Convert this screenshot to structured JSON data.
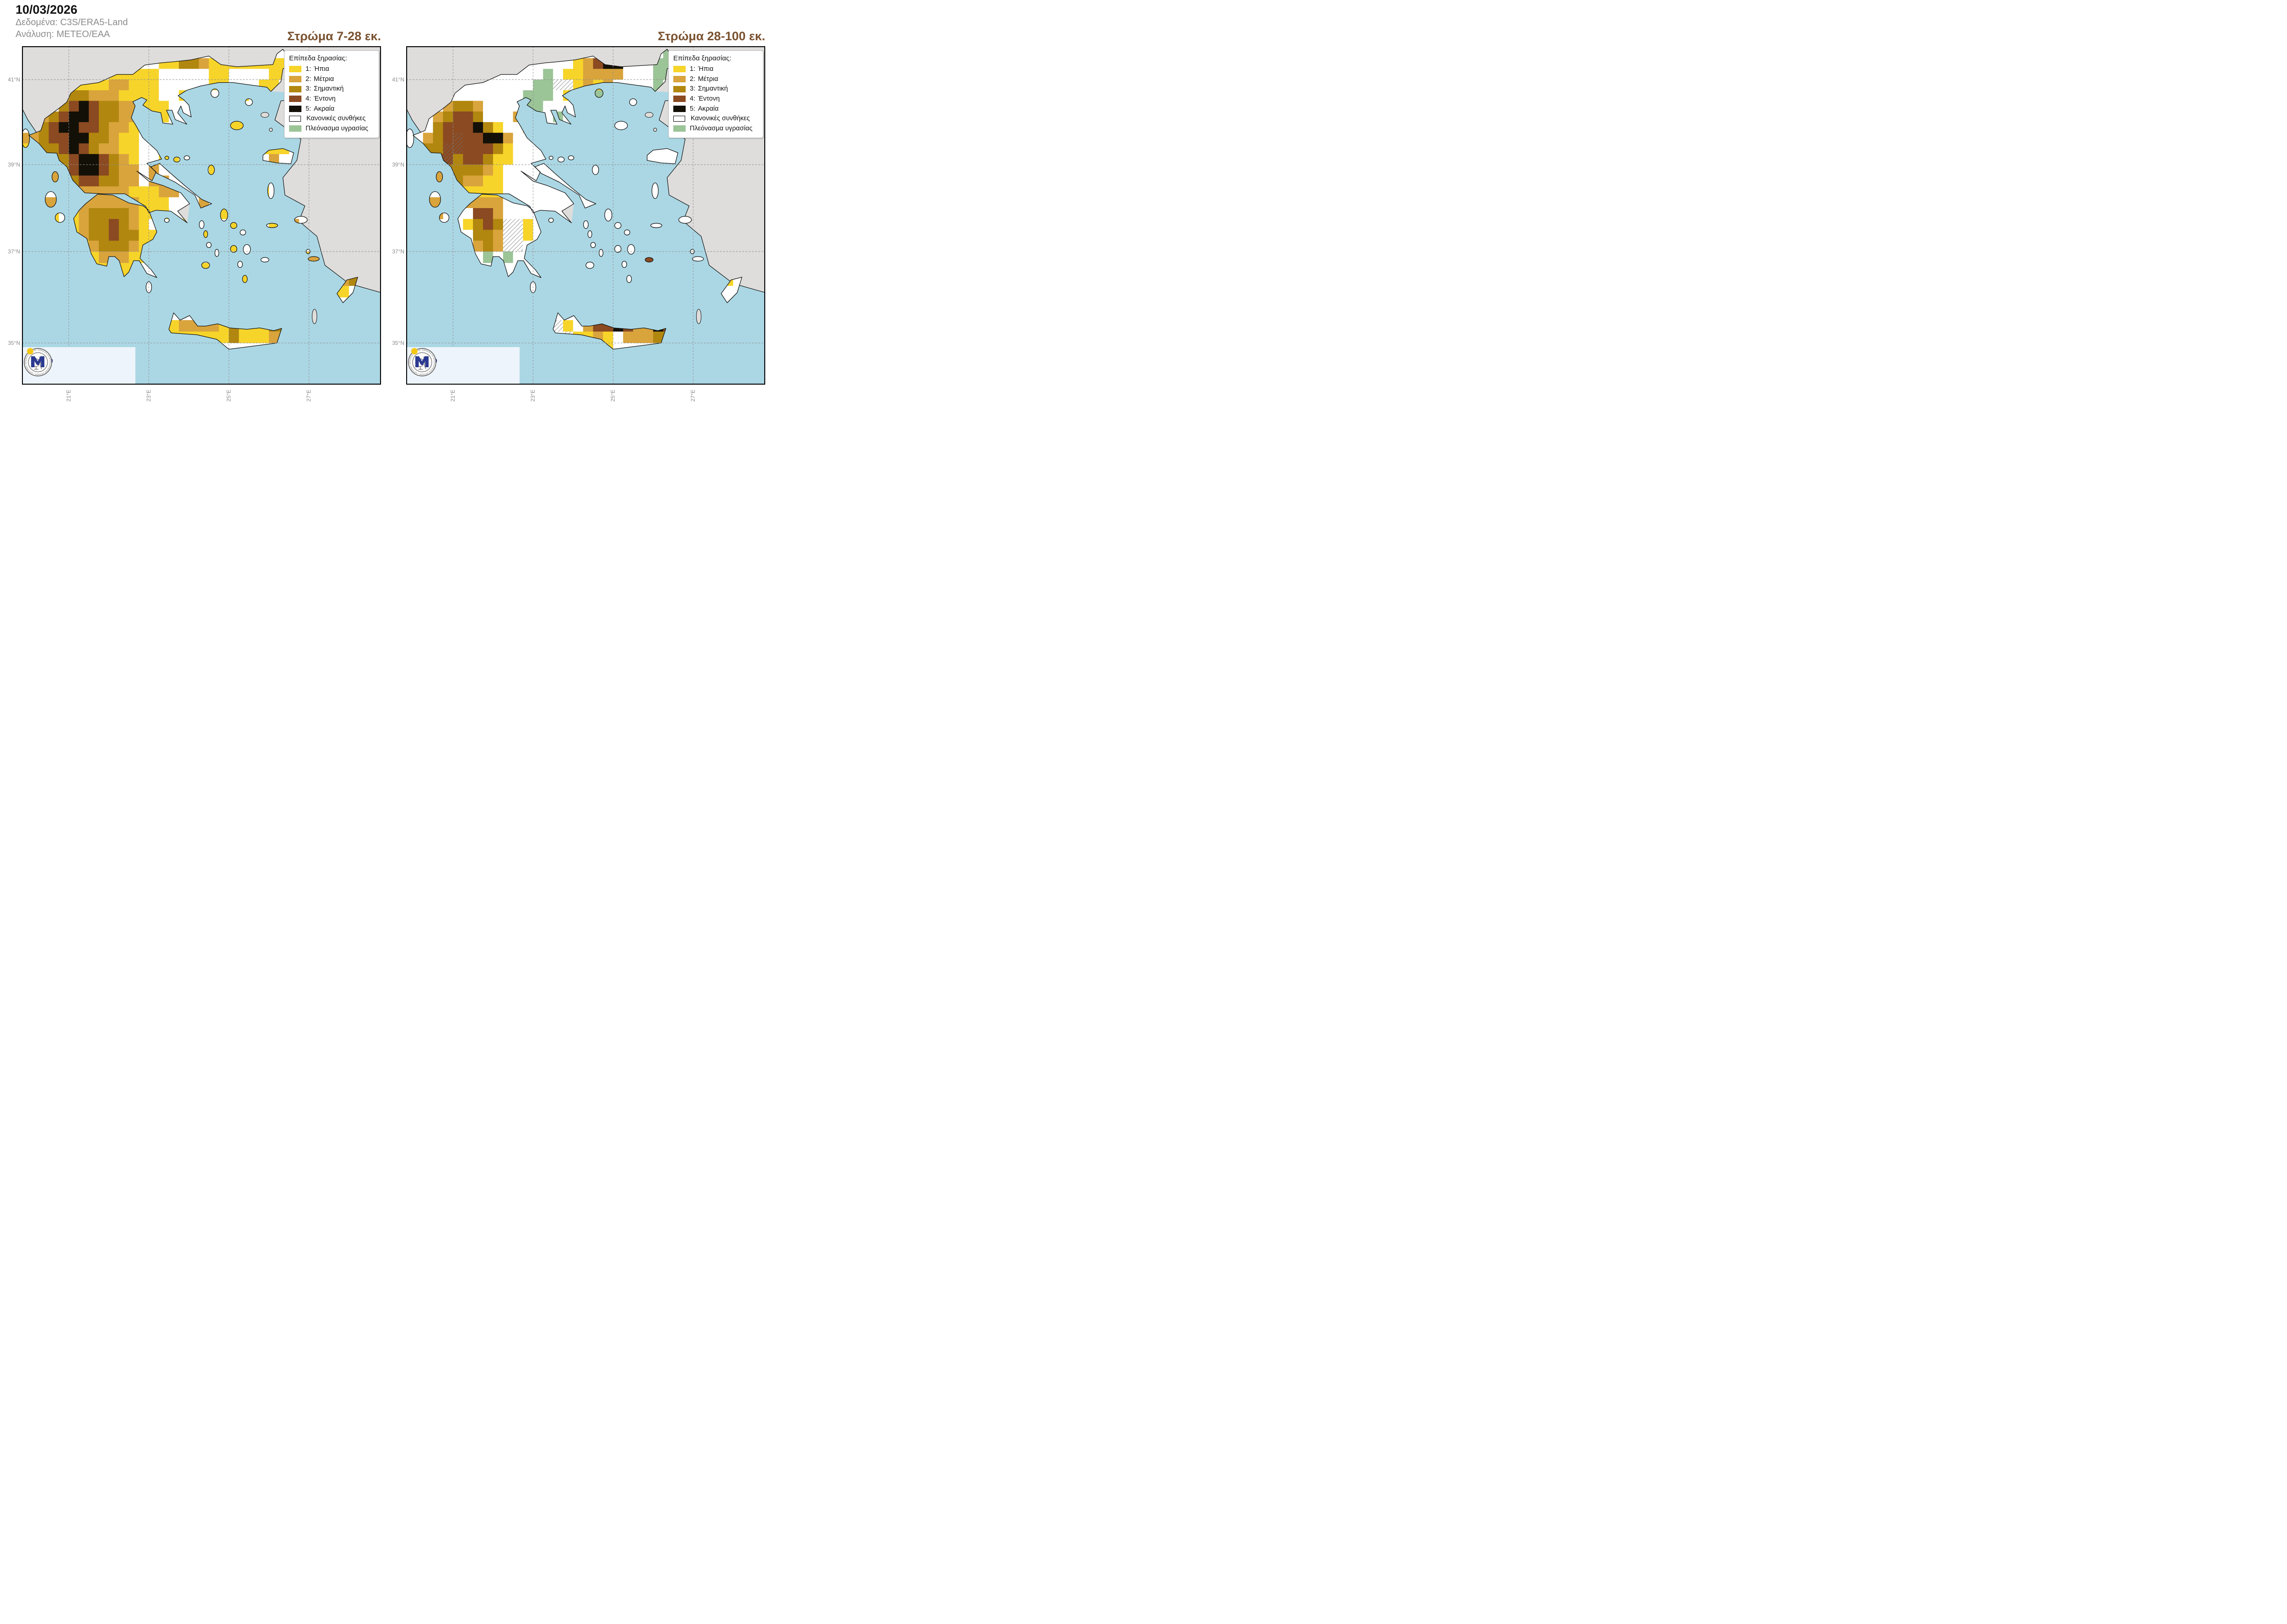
{
  "header": {
    "date": "10/03/2026",
    "data_source": "Δεδομένα: C3S/ERA5-Land",
    "analysis": "Ανάλυση: ΜΕΤΕΟ/ΕΑΑ"
  },
  "maps": [
    {
      "title": "Στρώμα 7-28 εκ.",
      "grid": [
        "....................................",
        "..............1133211111111.........",
        ".........111110000011000011.........",
        ".....1111221110000011000110.........",
        "....23322211110010000110011.........",
        "....3454332211100...................",
        ".2234554332211100....10.............",
        ".23455443221.........11.............",
        "223445533211........................",
        "123345432211............111.........",
        "..2334554321..11.........2..........",
        "...234554322.2.....1................",
        "..2223443322.22.....................",
        ".....22222211122........1...........",
        "..22..2222221110..2.................",
        "...1.1233332111.....1...............",
        "...1.123343210..1....1...1.2........",
        ".....123343311....1.................",
        "......1233321.......010.............",
        "......0122211...............12......",
        ".......111110.....1.................",
        "........0.100.........1.........23..",
        "............0..................110..",
        "....................................",
        "....................................",
        "...............122221311133.........",
        "...............111111311122.........",
        "...................000.............."
      ]
    },
    {
      "title": "Στρώμα 28-100 εκ.",
      "grid": [
        "..........................gg........",
        ".................12455000ggg........",
        ".........00000g0112222000gg.........",
        ".....00000000gghh12120000g0.........",
        "....00000000ggg0101g0g000gg.........",
        "....23320000gg000.1.................",
        "..0234430002400g0....00.............",
        ".0034445310020.......00.............",
        ".0234x4455200.......................",
        "..33xx4443100.00........000.........",
        "..3xx3443110..00.........0..........",
        "...233332100.0.....0................",
        "..0223221100.00.....................",
        ".....11111000000........0...........",
        "..22..2222000000..0.................",
        "...2.0044200000.....0...............",
        ".....01343hh10..0....0...0.0........",
        ".....00332hh10....0.................",
        "......0232hh0.......000.............",
        "......00g0g00...........4...00......",
        ".......00h000.....0.................",
        "........0.000.........0.........10..",
        "............0..................000..",
        "....................................",
        "....................................",
        "...............h10244542254.........",
        "...............0h1121022233.........",
        "...................0100............."
      ]
    }
  ],
  "legend": {
    "title": "Επίπεδα ξηρασίας:",
    "items": [
      {
        "num": "1:",
        "label": "Ήπια",
        "color": "#F7D42A",
        "outline": false
      },
      {
        "num": "2:",
        "label": "Μέτρια",
        "color": "#D9A43C",
        "outline": false
      },
      {
        "num": "3:",
        "label": "Σημαντική",
        "color": "#B1870F",
        "outline": false
      },
      {
        "num": "4:",
        "label": "Έντονη",
        "color": "#8B4A21",
        "outline": false
      },
      {
        "num": "5:",
        "label": "Ακραία",
        "color": "#131007",
        "outline": false
      },
      {
        "num": "",
        "label": "Κανονικές συνθήκες",
        "color": "#FFFFFF",
        "outline": true
      },
      {
        "num": "",
        "label": "Πλεόνασμα υγρασίας",
        "color": "#9BC497",
        "outline": false
      }
    ]
  },
  "axes": {
    "lat": [
      "41°N",
      "39°N",
      "37°N",
      "35°N"
    ],
    "lon": [
      "21°E",
      "23°E",
      "25°E",
      "27°E"
    ]
  },
  "logo": {
    "meteo": "Meteo",
    "tagline1": "Όλα για",
    "tagline2": "τον καιρό",
    "seal_text": "ΕΘΝΙΚΟΝ ΑΣΤΕΡΟΣΚΟΠΕΙΟΝ ΑΘΗΝΩΝ • NATIONAL OBSERVATORY OF ATHENS •"
  },
  "palette": {
    "0": "#FFFFFF",
    "1": "#F7D42A",
    "2": "#D9A43C",
    "3": "#B1870F",
    "4": "#8B4A21",
    "5": "#131007",
    "g": "#9BC497",
    "h": "#FFFFFF",
    "x": "#8B4A21"
  },
  "map_colors": {
    "sea": "#ABD7E4",
    "foreign_land": "#DEDDDB",
    "coastline": "#111111",
    "gridline": "#8f8f8f",
    "hatch": "#6f6f6f",
    "title_brown": "#7a5230",
    "meteo_blue": "#2B3990",
    "meteo_yellow": "#F4C713"
  }
}
